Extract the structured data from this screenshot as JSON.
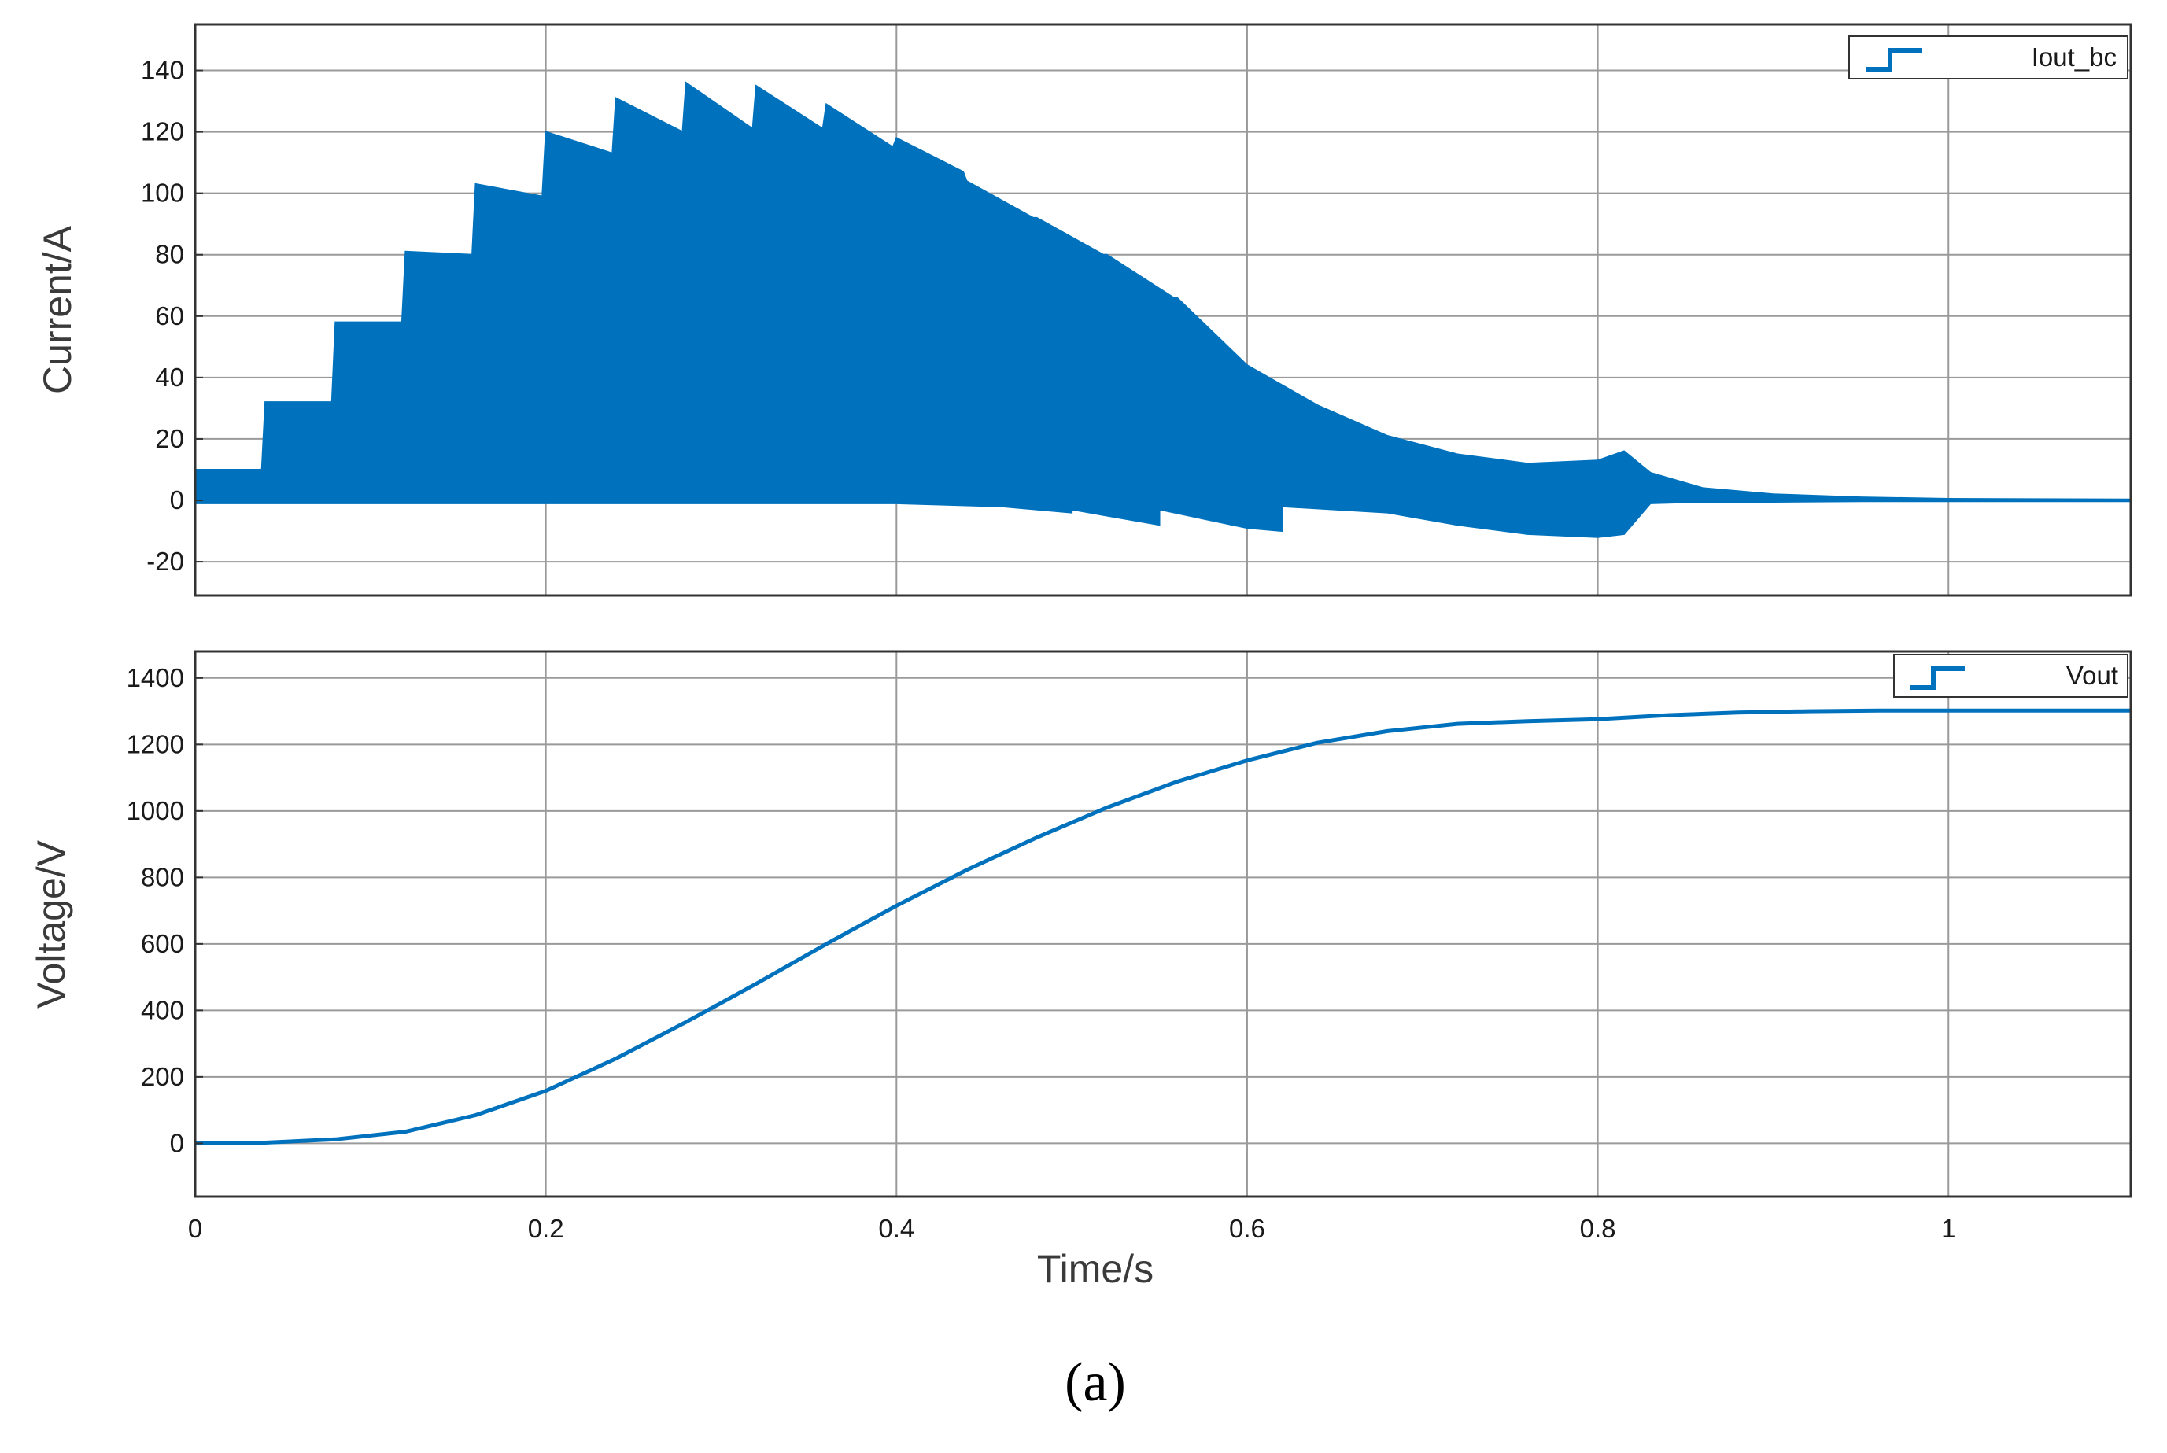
{
  "colors": {
    "series": "#0072BD",
    "grid": "#9a9a9a",
    "frame": "#333333"
  },
  "caption": "(a)",
  "chart_data": [
    {
      "type": "line",
      "panel": "top",
      "xlabel": "",
      "ylabel": "Current/A",
      "xlim": [
        0,
        1.104
      ],
      "ylim": [
        -31,
        155
      ],
      "xticks": [
        0,
        0.2,
        0.4,
        0.6,
        0.8,
        1
      ],
      "yticks": [
        -20,
        0,
        20,
        40,
        60,
        80,
        100,
        120,
        140
      ],
      "ytick_labels": [
        "-20",
        "0",
        "20",
        "40",
        "60",
        "80",
        "100",
        "120",
        "140"
      ],
      "grid": true,
      "legend_position": "top-right",
      "series": [
        {
          "name": "Iout_bc",
          "style": "dense switching ripple (filled envelope)",
          "envelope_upper": {
            "x": [
              0,
              0.038,
              0.04,
              0.078,
              0.08,
              0.118,
              0.12,
              0.158,
              0.16,
              0.198,
              0.2,
              0.238,
              0.24,
              0.278,
              0.28,
              0.318,
              0.32,
              0.358,
              0.36,
              0.398,
              0.4,
              0.438,
              0.44,
              0.478,
              0.48,
              0.518,
              0.52,
              0.558,
              0.56,
              0.6,
              0.64,
              0.68,
              0.72,
              0.76,
              0.8,
              0.815,
              0.83,
              0.86,
              0.9,
              0.95,
              1.0,
              1.104
            ],
            "y": [
              10,
              10,
              32,
              32,
              58,
              58,
              81,
              80,
              103,
              99,
              120,
              113,
              131,
              120,
              136,
              121,
              135,
              121,
              129,
              115,
              118,
              107,
              104,
              92,
              92,
              80,
              80,
              66,
              66,
              44,
              31,
              21,
              15,
              12,
              13,
              16,
              9,
              4,
              2,
              1,
              0.5,
              0.3
            ]
          },
          "envelope_lower": {
            "x": [
              0,
              0.4,
              0.46,
              0.5,
              0.5,
              0.55,
              0.55,
              0.6,
              0.62,
              0.62,
              0.68,
              0.72,
              0.76,
              0.8,
              0.815,
              0.83,
              0.86,
              0.9,
              0.95,
              1.0,
              1.104
            ],
            "y": [
              -1,
              -1,
              -2,
              -4,
              -3,
              -8,
              -3,
              -9,
              -10,
              -2,
              -4,
              -8,
              -11,
              -12,
              -11,
              -1,
              -0.5,
              -0.5,
              -0.3,
              -0.3,
              -0.3
            ]
          }
        }
      ]
    },
    {
      "type": "line",
      "panel": "bottom",
      "xlabel": "Time/s",
      "ylabel": "Voltage/V",
      "xlim": [
        0,
        1.104
      ],
      "ylim": [
        -160,
        1480
      ],
      "xticks": [
        0,
        0.2,
        0.4,
        0.6,
        0.8,
        1
      ],
      "xtick_labels": [
        "0",
        "0.2",
        "0.4",
        "0.6",
        "0.8",
        "1"
      ],
      "yticks": [
        0,
        200,
        400,
        600,
        800,
        1000,
        1200,
        1400
      ],
      "ytick_labels": [
        "0",
        "200",
        "400",
        "600",
        "800",
        "1000",
        "1200",
        "1400"
      ],
      "grid": true,
      "legend_position": "top-right",
      "series": [
        {
          "name": "Vout",
          "x": [
            0,
            0.04,
            0.08,
            0.12,
            0.16,
            0.2,
            0.24,
            0.28,
            0.32,
            0.36,
            0.4,
            0.44,
            0.48,
            0.52,
            0.56,
            0.6,
            0.64,
            0.68,
            0.72,
            0.76,
            0.8,
            0.84,
            0.88,
            0.92,
            0.96,
            1.0,
            1.104
          ],
          "y": [
            0,
            2,
            12,
            35,
            85,
            158,
            255,
            365,
            480,
            600,
            715,
            822,
            920,
            1010,
            1088,
            1152,
            1205,
            1240,
            1262,
            1270,
            1276,
            1288,
            1296,
            1300,
            1302,
            1302,
            1302
          ]
        }
      ]
    }
  ]
}
